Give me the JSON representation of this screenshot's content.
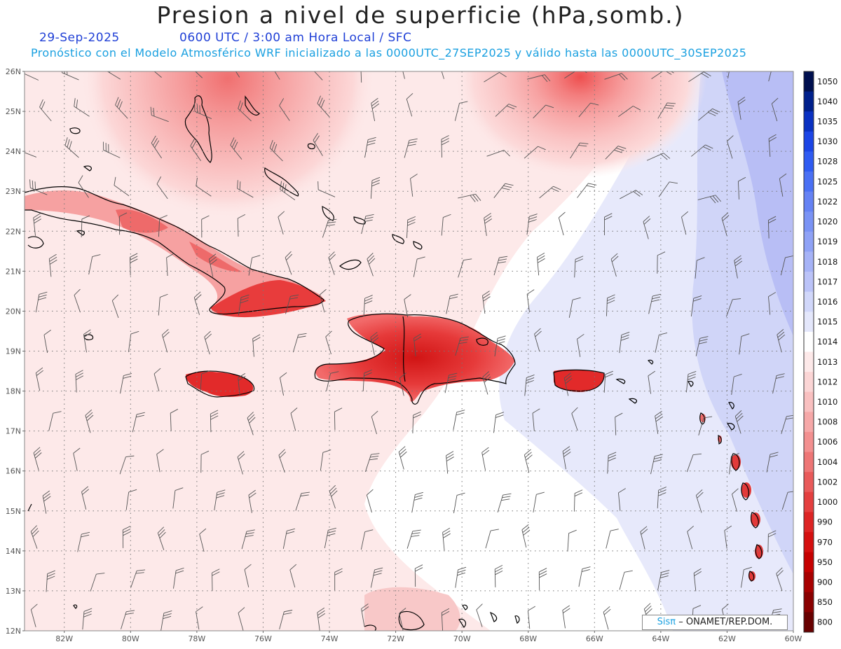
{
  "header": {
    "title": "Presion a nivel de superficie (hPa,somb.)",
    "date": "29-Sep-2025",
    "time": "0600 UTC / 3:00 am Hora Local / SFC",
    "model": "Pronóstico con el Modelo Atmosférico WRF inicializado a las 0000UTC_27SEP2025 y válido hasta las  0000UTC_30SEP2025"
  },
  "map": {
    "lat_labels": [
      "26N",
      "25N",
      "24N",
      "23N",
      "22N",
      "21N",
      "20N",
      "19N",
      "18N",
      "17N",
      "16N",
      "15N",
      "14N",
      "13N",
      "12N"
    ],
    "lon_labels": [
      "82W",
      "80W",
      "78W",
      "76W",
      "74W",
      "72W",
      "70W",
      "68W",
      "66W",
      "64W",
      "62W",
      "60W"
    ],
    "lat_range": [
      12,
      26
    ],
    "lon_range": [
      -83.2,
      -60
    ],
    "lows": [
      {
        "lon": -66.4,
        "lat": 25.9,
        "intensity": 1.0
      },
      {
        "lon": -77.1,
        "lat": 25.8,
        "intensity": 0.8
      }
    ],
    "high_region": {
      "side": "east",
      "from_lon": -66,
      "colors": [
        "#c8ccf7",
        "#b3b8f4"
      ]
    }
  },
  "colorbar": {
    "labels": [
      "1050",
      "1040",
      "1035",
      "1030",
      "1028",
      "1025",
      "1022",
      "1020",
      "1019",
      "1018",
      "1017",
      "1016",
      "1015",
      "1014",
      "1013",
      "1012",
      "1010",
      "1008",
      "1006",
      "1004",
      "1002",
      "1000",
      "990",
      "970",
      "950",
      "900",
      "850",
      "800"
    ],
    "colors": [
      "#00104f",
      "#00208c",
      "#0a31c2",
      "#1c45e6",
      "#2f5bf2",
      "#4a70f4",
      "#6582f4",
      "#7a93f5",
      "#8fa2f6",
      "#a6b3f7",
      "#bbc3f8",
      "#d1d7fa",
      "#e4e7fb",
      "#ffffff",
      "#fde9e9",
      "#fbd5d5",
      "#f9c0c0",
      "#f6a8a8",
      "#f39090",
      "#ee7676",
      "#e95a5a",
      "#e43f3f",
      "#dd2424",
      "#d50f0f",
      "#c60000",
      "#a80000",
      "#8a0000",
      "#680000"
    ]
  },
  "credit": {
    "brand": "Sisπ",
    "text": "– ONAMET/REP.DOM."
  }
}
